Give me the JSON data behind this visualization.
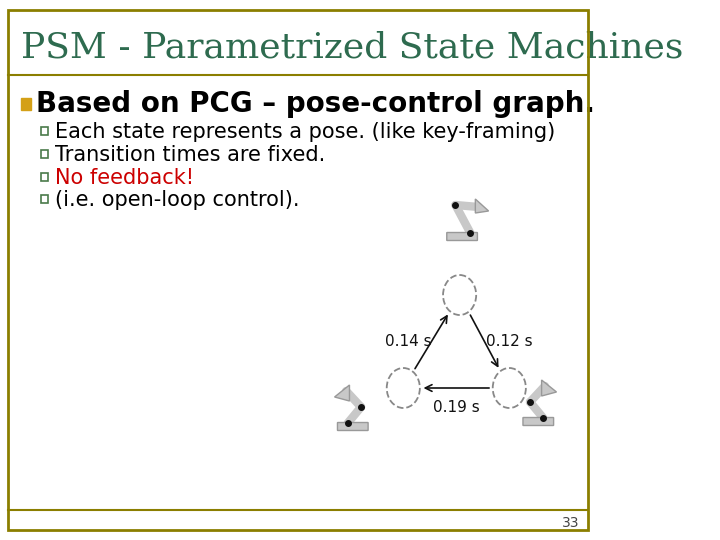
{
  "title": "PSM - Parametrized State Machines",
  "title_color": "#2E6B4F",
  "title_fontsize": 26,
  "background_color": "#FFFFFF",
  "border_color": "#8B7E00",
  "bullet_main": "Based on PCG – pose-control graph.",
  "bullet_main_color": "#000000",
  "bullet_main_fontsize": 20,
  "bullet_square_color": "#D4A017",
  "sub_bullets": [
    "Each state represents a pose. (like key-framing)",
    "Transition times are fixed.",
    "No feedback!",
    "(i.e. open-loop control)."
  ],
  "sub_bullet_colors": [
    "#000000",
    "#000000",
    "#CC0000",
    "#000000"
  ],
  "sub_bullet_fontsize": 15,
  "page_number": "33",
  "arrow_times": [
    "0.14 s",
    "0.12 s",
    "0.19 s"
  ],
  "fig_gray": "#C8C8C8",
  "fig_dark": "#111111",
  "circle_dashed": "#888888",
  "arrow_color": "#111111"
}
